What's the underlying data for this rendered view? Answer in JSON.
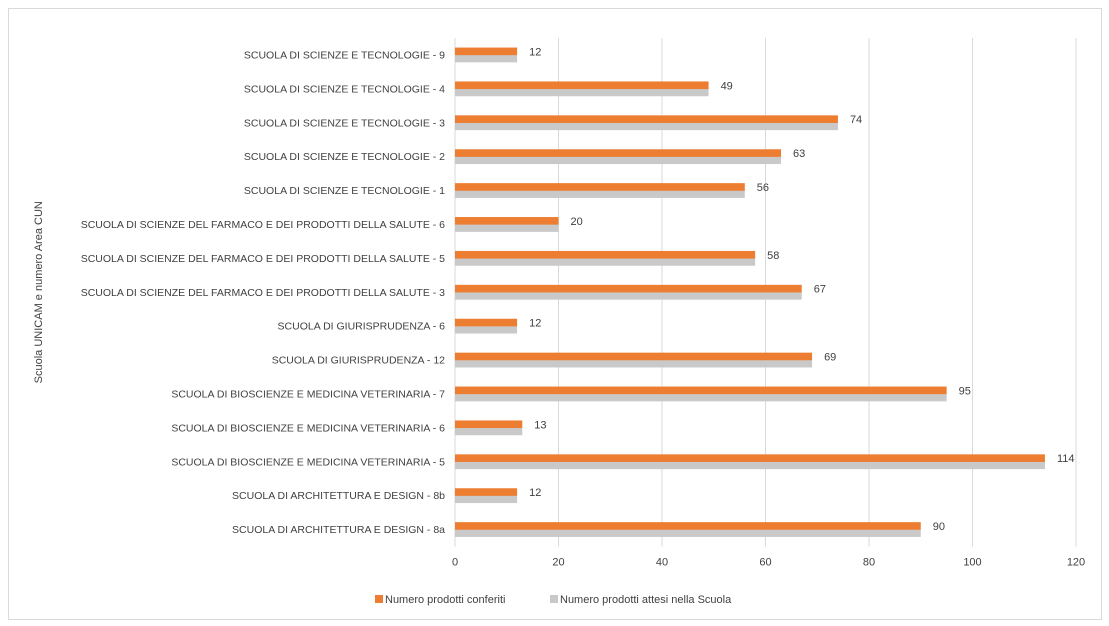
{
  "chart_data": {
    "type": "bar",
    "orientation": "horizontal",
    "title": "",
    "xlabel": "",
    "ylabel": "Scuola UNICAM e numero Area CUN",
    "xlim": [
      0,
      120
    ],
    "xticks": [
      0,
      20,
      40,
      60,
      80,
      100,
      120
    ],
    "grid": true,
    "legend_position": "bottom",
    "categories": [
      "SCUOLA DI SCIENZE E TECNOLOGIE - 9",
      "SCUOLA DI SCIENZE E TECNOLOGIE - 4",
      "SCUOLA DI SCIENZE E TECNOLOGIE - 3",
      "SCUOLA DI SCIENZE E TECNOLOGIE - 2",
      "SCUOLA DI SCIENZE E TECNOLOGIE - 1",
      "SCUOLA DI SCIENZE DEL FARMACO E DEI PRODOTTI DELLA SALUTE - 6",
      "SCUOLA DI SCIENZE DEL FARMACO E DEI PRODOTTI DELLA SALUTE - 5",
      "SCUOLA DI SCIENZE DEL FARMACO E DEI PRODOTTI DELLA SALUTE - 3",
      "SCUOLA DI GIURISPRUDENZA - 6",
      "SCUOLA DI GIURISPRUDENZA - 12",
      "SCUOLA DI BIOSCIENZE E MEDICINA VETERINARIA - 7",
      "SCUOLA DI BIOSCIENZE E MEDICINA VETERINARIA - 6",
      "SCUOLA DI BIOSCIENZE E MEDICINA VETERINARIA - 5",
      "SCUOLA DI ARCHITETTURA E DESIGN - 8b",
      "SCUOLA DI ARCHITETTURA E DESIGN - 8a"
    ],
    "series": [
      {
        "name": "Numero prodotti conferiti",
        "color": "#ED7D31",
        "values": [
          12,
          49,
          74,
          63,
          56,
          20,
          58,
          67,
          12,
          69,
          95,
          13,
          114,
          12,
          90
        ]
      },
      {
        "name": "Numero prodotti attesi nella Scuola",
        "color": "#C9C9C9",
        "values": [
          12,
          49,
          74,
          63,
          56,
          20,
          58,
          67,
          12,
          69,
          95,
          13,
          114,
          12,
          90
        ]
      }
    ],
    "data_labels_series": 0
  }
}
